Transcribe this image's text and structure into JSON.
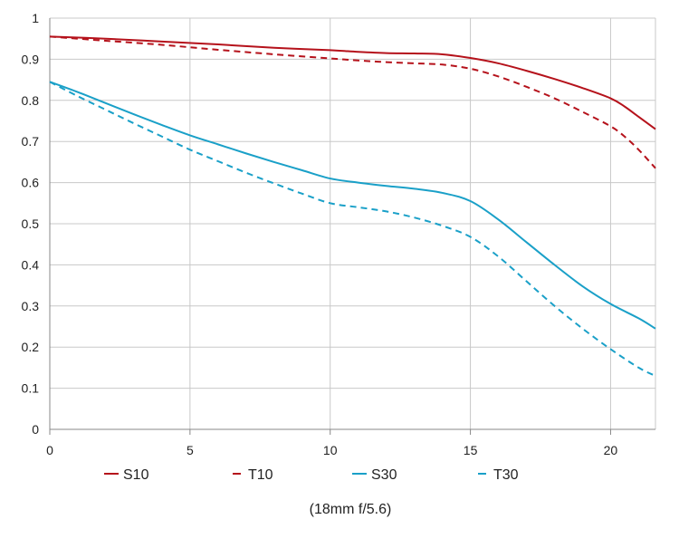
{
  "chart_data": {
    "type": "line",
    "title": "",
    "caption": "(18mm f/5.6)",
    "xlabel": "",
    "ylabel": "",
    "xlim": [
      0,
      21.6
    ],
    "ylim": [
      0,
      1
    ],
    "x_ticks": [
      0,
      5,
      10,
      15,
      20
    ],
    "x_tick_labels": [
      "0",
      "5",
      "10",
      "15",
      "20"
    ],
    "y_ticks": [
      0,
      0.1,
      0.2,
      0.3,
      0.4,
      0.5,
      0.6,
      0.7,
      0.8,
      0.9,
      1
    ],
    "y_tick_labels": [
      "0",
      "0.1",
      "0.2",
      "0.3",
      "0.4",
      "0.5",
      "0.6",
      "0.7",
      "0.8",
      "0.9",
      "1"
    ],
    "grid": true,
    "legend_position": "bottom",
    "series": [
      {
        "name": "S10",
        "color": "#B5121B",
        "style": "solid",
        "x": [
          0,
          2,
          4,
          6,
          8,
          10,
          11,
          12,
          13,
          14,
          15,
          16,
          17,
          18,
          19,
          20,
          20.5,
          21,
          21.6
        ],
        "y": [
          0.955,
          0.95,
          0.943,
          0.936,
          0.928,
          0.922,
          0.918,
          0.915,
          0.914,
          0.912,
          0.903,
          0.89,
          0.872,
          0.852,
          0.83,
          0.805,
          0.785,
          0.76,
          0.73
        ]
      },
      {
        "name": "T10",
        "color": "#B5121B",
        "style": "dashed",
        "x": [
          0,
          2,
          4,
          6,
          8,
          10,
          11,
          12,
          13,
          14,
          15,
          16,
          17,
          18,
          19,
          20,
          20.5,
          21,
          21.6
        ],
        "y": [
          0.955,
          0.945,
          0.935,
          0.923,
          0.912,
          0.902,
          0.897,
          0.893,
          0.89,
          0.887,
          0.877,
          0.858,
          0.833,
          0.805,
          0.772,
          0.737,
          0.712,
          0.68,
          0.635
        ]
      },
      {
        "name": "S30",
        "color": "#1AA0C8",
        "style": "solid",
        "x": [
          0,
          1,
          2,
          3,
          4,
          5,
          6,
          7,
          8,
          9,
          10,
          11,
          12,
          13,
          14,
          15,
          16,
          17,
          18,
          19,
          20,
          21,
          21.6
        ],
        "y": [
          0.845,
          0.82,
          0.793,
          0.766,
          0.74,
          0.715,
          0.693,
          0.671,
          0.65,
          0.63,
          0.61,
          0.6,
          0.592,
          0.585,
          0.575,
          0.555,
          0.51,
          0.455,
          0.4,
          0.348,
          0.305,
          0.27,
          0.245
        ]
      },
      {
        "name": "T30",
        "color": "#1AA0C8",
        "style": "dashed",
        "x": [
          0,
          1,
          2,
          3,
          4,
          5,
          6,
          7,
          8,
          9,
          10,
          11,
          12,
          13,
          14,
          15,
          16,
          17,
          18,
          19,
          20,
          21,
          21.6
        ],
        "y": [
          0.845,
          0.81,
          0.777,
          0.744,
          0.712,
          0.68,
          0.652,
          0.624,
          0.598,
          0.573,
          0.55,
          0.54,
          0.53,
          0.515,
          0.495,
          0.468,
          0.42,
          0.36,
          0.3,
          0.245,
          0.195,
          0.15,
          0.13
        ]
      }
    ]
  }
}
